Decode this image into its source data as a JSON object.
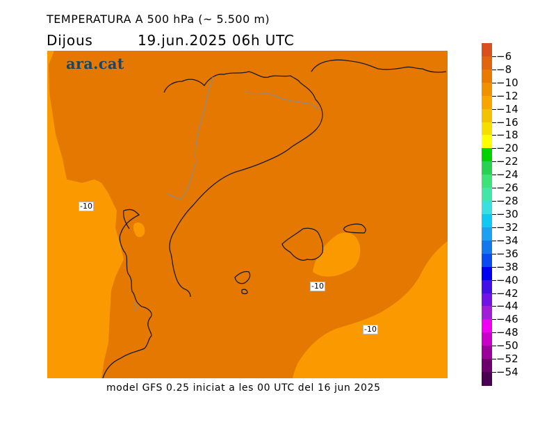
{
  "header": {
    "title": "TEMPERATURA A 500 hPa (~ 5.500 m)",
    "day": "Dijous",
    "datetime": "19.jun.2025 06h UTC"
  },
  "logo": "ara.cat",
  "footer": "model GFS 0.25 iniciat a les 00 UTC del 16 jun 2025",
  "contour_labels": [
    "-10",
    "-10",
    "-10"
  ],
  "legend": {
    "labels": [
      "-6",
      "-8",
      "-10",
      "-12",
      "-14",
      "-16",
      "-18",
      "-20",
      "-22",
      "-24",
      "-26",
      "-28",
      "-30",
      "-32",
      "-34",
      "-36",
      "-38",
      "-40",
      "-42",
      "-44",
      "-46",
      "-48",
      "-50",
      "-52",
      "-54"
    ],
    "colors": [
      "#d9501e",
      "#e1640f",
      "#e87a00",
      "#f09100",
      "#f8a500",
      "#f2c200",
      "#f5de00",
      "#ffff00",
      "#00d200",
      "#28d250",
      "#3ee278",
      "#44e6a8",
      "#3cdfdf",
      "#10c8f0",
      "#1ea0f0",
      "#1478ec",
      "#0a4af0",
      "#0000f0",
      "#4010e6",
      "#7014e6",
      "#a01ed6",
      "#f000f0",
      "#c800c8",
      "#9b009b",
      "#6e006e",
      "#4a0050"
    ]
  },
  "field_colors": {
    "warm": "#e47800",
    "cool": "#fa9a00",
    "coast": "#1a1a1a",
    "border": "#8c8c8c"
  }
}
